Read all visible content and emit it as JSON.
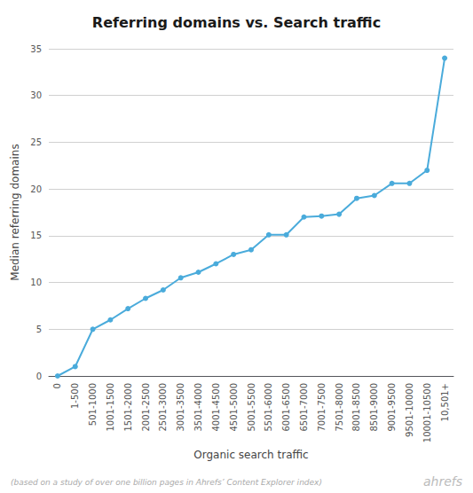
{
  "chart_data": {
    "type": "line",
    "title": "Referring domains vs. Search traffic",
    "x_label": "Organic search traffic",
    "y_label": "Median referring domains",
    "annotations": [
      "(based on a study of over one billion pages in Ahrefs’ Content Explorer index)",
      "ahrefs"
    ],
    "categories": [
      "0",
      "1-500",
      "501-1000",
      "1001-1500",
      "1501-2000",
      "2001-2500",
      "2501-3000",
      "3001-3500",
      "3501-4000",
      "4001-4500",
      "4501-5000",
      "5001-5500",
      "5501-6000",
      "6001-6500",
      "6501-7000",
      "7001-7500",
      "7501-8000",
      "8001-8500",
      "8501-9000",
      "9001-9500",
      "9501-10000",
      "10001-10500",
      "10,501+"
    ],
    "values": [
      0,
      1,
      5,
      6,
      7.2,
      8.3,
      9.2,
      10.5,
      11.1,
      12.0,
      13.0,
      13.5,
      15.1,
      15.1,
      17.0,
      17.1,
      17.3,
      19.0,
      19.3,
      20.6,
      20.6,
      22.0,
      34.0
    ],
    "color": "#4aabdb",
    "marker": "circle",
    "ylim": [
      0,
      35
    ],
    "yticks": [
      0,
      5,
      10,
      15,
      20,
      25,
      30,
      35
    ],
    "grid": true
  }
}
